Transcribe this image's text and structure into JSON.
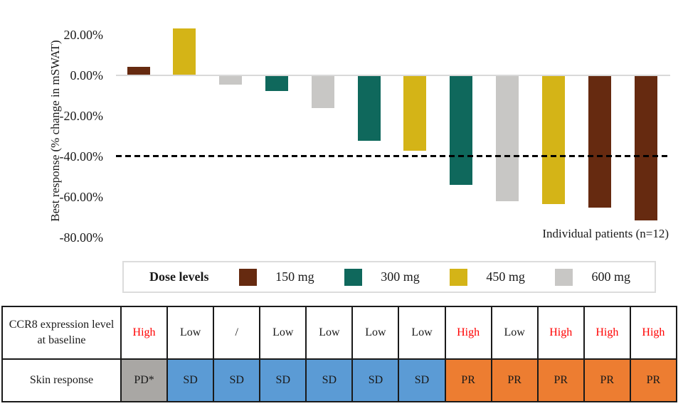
{
  "chart_data": {
    "type": "bar",
    "title": "",
    "ylabel": "Best response (% change in mSWAT)",
    "xlabel": "Individual patients (n=12)",
    "ylim": [
      -80,
      25
    ],
    "grid": false,
    "yticks": [
      {
        "value": 20,
        "label": "20.00%"
      },
      {
        "value": 0,
        "label": "0.00%"
      },
      {
        "value": -20,
        "label": "-20.00%"
      },
      {
        "value": -40,
        "label": "-40.00%"
      },
      {
        "value": -60,
        "label": "-60.00%"
      },
      {
        "value": -80,
        "label": "-80.00%"
      }
    ],
    "reference_line": {
      "y": -40,
      "style": "dashed",
      "color": "#000000"
    },
    "bars": [
      {
        "patient": 1,
        "value": 4,
        "dose": "150 mg"
      },
      {
        "patient": 2,
        "value": 23,
        "dose": "450 mg"
      },
      {
        "patient": 3,
        "value": -4.5,
        "dose": "600 mg"
      },
      {
        "patient": 4,
        "value": -7.5,
        "dose": "300 mg"
      },
      {
        "patient": 5,
        "value": -16,
        "dose": "600 mg"
      },
      {
        "patient": 6,
        "value": -32,
        "dose": "300 mg"
      },
      {
        "patient": 7,
        "value": -37,
        "dose": "450 mg"
      },
      {
        "patient": 8,
        "value": -54,
        "dose": "300 mg"
      },
      {
        "patient": 9,
        "value": -62,
        "dose": "600 mg"
      },
      {
        "patient": 10,
        "value": -63.5,
        "dose": "450 mg"
      },
      {
        "patient": 11,
        "value": -65,
        "dose": "150 mg"
      },
      {
        "patient": 12,
        "value": -71.5,
        "dose": "150 mg"
      }
    ]
  },
  "legend": {
    "title": "Dose levels",
    "items": [
      {
        "label": "150 mg",
        "color": "#662a10"
      },
      {
        "label": "300 mg",
        "color": "#0f685c"
      },
      {
        "label": "450 mg",
        "color": "#d4b417"
      },
      {
        "label": "600 mg",
        "color": "#c8c7c5"
      }
    ]
  },
  "table": {
    "rows": [
      {
        "header": "CCR8 expression level at baseline",
        "cells": [
          {
            "text": "High",
            "emphasis": true
          },
          {
            "text": "Low"
          },
          {
            "text": "/"
          },
          {
            "text": "Low"
          },
          {
            "text": "Low"
          },
          {
            "text": "Low"
          },
          {
            "text": "Low"
          },
          {
            "text": "High",
            "emphasis": true
          },
          {
            "text": "Low"
          },
          {
            "text": "High",
            "emphasis": true
          },
          {
            "text": "High",
            "emphasis": true
          },
          {
            "text": "High",
            "emphasis": true
          }
        ]
      },
      {
        "header": "Skin response",
        "cells": [
          {
            "text": "PD*",
            "bg": "#a9a7a4"
          },
          {
            "text": "SD",
            "bg": "#5b9bd5"
          },
          {
            "text": "SD",
            "bg": "#5b9bd5"
          },
          {
            "text": "SD",
            "bg": "#5b9bd5"
          },
          {
            "text": "SD",
            "bg": "#5b9bd5"
          },
          {
            "text": "SD",
            "bg": "#5b9bd5"
          },
          {
            "text": "SD",
            "bg": "#5b9bd5"
          },
          {
            "text": "PR",
            "bg": "#ed7d31"
          },
          {
            "text": "PR",
            "bg": "#ed7d31"
          },
          {
            "text": "PR",
            "bg": "#ed7d31"
          },
          {
            "text": "PR",
            "bg": "#ed7d31"
          },
          {
            "text": "PR",
            "bg": "#ed7d31"
          }
        ]
      }
    ]
  },
  "colors": {
    "red_text": "#ff0000",
    "zero_line": "#d9d9d9",
    "reference_line": "#000000",
    "table_border": "#1a1a1a"
  }
}
